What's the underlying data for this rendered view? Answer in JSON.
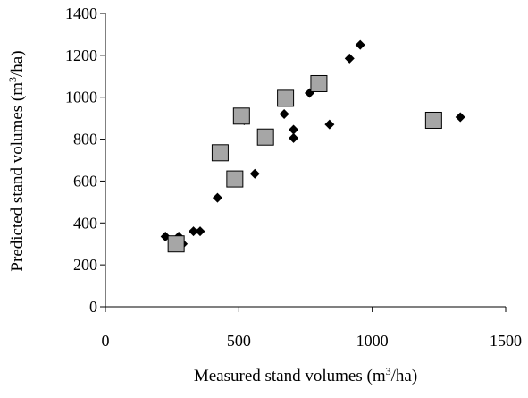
{
  "chart_data": {
    "type": "scatter",
    "title": "",
    "xlabel": {
      "prefix": "Measured stand volumes (m",
      "sup": "3",
      "suffix": "/ha)"
    },
    "ylabel": {
      "prefix": "Predicted stand volumes (m",
      "sup": "3",
      "suffix": "/ha)"
    },
    "xlim": [
      0,
      1500
    ],
    "ylim": [
      0,
      1400
    ],
    "x_ticks": [
      0,
      500,
      1000,
      1500
    ],
    "y_ticks": [
      0,
      200,
      400,
      600,
      800,
      1000,
      1200,
      1400
    ],
    "grid": false,
    "legend": "none",
    "series": [
      {
        "marker": "diamond",
        "color": "#000000",
        "points": [
          [
            225,
            335
          ],
          [
            275,
            335
          ],
          [
            290,
            300
          ],
          [
            330,
            360
          ],
          [
            355,
            360
          ],
          [
            420,
            520
          ],
          [
            520,
            890
          ],
          [
            560,
            635
          ],
          [
            670,
            920
          ],
          [
            705,
            845
          ],
          [
            705,
            805
          ],
          [
            765,
            1020
          ],
          [
            840,
            870
          ],
          [
            915,
            1185
          ],
          [
            955,
            1250
          ],
          [
            1330,
            905
          ]
        ]
      },
      {
        "marker": "square",
        "color": "#a6a6a6",
        "points": [
          [
            265,
            300
          ],
          [
            430,
            735
          ],
          [
            485,
            610
          ],
          [
            510,
            910
          ],
          [
            600,
            810
          ],
          [
            675,
            995
          ],
          [
            800,
            1065
          ],
          [
            1230,
            890
          ]
        ]
      }
    ]
  }
}
